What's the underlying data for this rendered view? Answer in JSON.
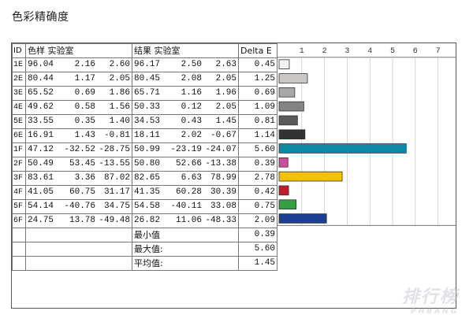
{
  "title": "色彩精确度",
  "headers": {
    "id": "ID",
    "sample": "色样 实验室",
    "result": "结果 实验室",
    "delta": "Delta E"
  },
  "rows": [
    {
      "id": "1E",
      "s": [
        "96.04",
        "2.16",
        "2.60"
      ],
      "r": [
        "96.17",
        "2.50",
        "2.63"
      ],
      "de": "0.45"
    },
    {
      "id": "2E",
      "s": [
        "80.44",
        "1.17",
        "2.05"
      ],
      "r": [
        "80.45",
        "2.08",
        "2.05"
      ],
      "de": "1.25"
    },
    {
      "id": "3E",
      "s": [
        "65.52",
        "0.69",
        "1.86"
      ],
      "r": [
        "65.71",
        "1.16",
        "1.96"
      ],
      "de": "0.69"
    },
    {
      "id": "4E",
      "s": [
        "49.62",
        "0.58",
        "1.56"
      ],
      "r": [
        "50.33",
        "0.12",
        "2.05"
      ],
      "de": "1.09"
    },
    {
      "id": "5E",
      "s": [
        "33.55",
        "0.35",
        "1.40"
      ],
      "r": [
        "34.53",
        "0.43",
        "1.45"
      ],
      "de": "0.81"
    },
    {
      "id": "6E",
      "s": [
        "16.91",
        "1.43",
        "-0.81"
      ],
      "r": [
        "18.11",
        "2.02",
        "-0.67"
      ],
      "de": "1.14"
    },
    {
      "id": "1F",
      "s": [
        "47.12",
        "-32.52",
        "-28.75"
      ],
      "r": [
        "50.99",
        "-23.19",
        "-24.07"
      ],
      "de": "5.60"
    },
    {
      "id": "2F",
      "s": [
        "50.49",
        "53.45",
        "-13.55"
      ],
      "r": [
        "50.80",
        "52.66",
        "-13.38"
      ],
      "de": "0.39"
    },
    {
      "id": "3F",
      "s": [
        "83.61",
        "3.36",
        "87.02"
      ],
      "r": [
        "82.65",
        "6.63",
        "78.99"
      ],
      "de": "2.78"
    },
    {
      "id": "4F",
      "s": [
        "41.05",
        "60.75",
        "31.17"
      ],
      "r": [
        "41.35",
        "60.28",
        "30.39"
      ],
      "de": "0.42"
    },
    {
      "id": "5F",
      "s": [
        "54.14",
        "-40.76",
        "34.75"
      ],
      "r": [
        "54.58",
        "-40.11",
        "33.08"
      ],
      "de": "0.75"
    },
    {
      "id": "6F",
      "s": [
        "24.75",
        "13.78",
        "-49.48"
      ],
      "r": [
        "26.82",
        "11.06",
        "-48.33"
      ],
      "de": "2.09"
    }
  ],
  "summary": [
    {
      "label": "最小值",
      "value": "0.39"
    },
    {
      "label": "最大值:",
      "value": "5.60"
    },
    {
      "label": "平均值:",
      "value": "1.45"
    }
  ],
  "watermark": {
    "text": "排行榜",
    "sub": "PHBANG"
  },
  "chart_data": {
    "type": "bar",
    "orientation": "horizontal",
    "categories": [
      "1E",
      "2E",
      "3E",
      "4E",
      "5E",
      "6E",
      "1F",
      "2F",
      "3F",
      "4F",
      "5F",
      "6F"
    ],
    "values": [
      0.45,
      1.25,
      0.69,
      1.09,
      0.81,
      1.14,
      5.6,
      0.39,
      2.78,
      0.42,
      0.75,
      2.09
    ],
    "colors": [
      "#f2f2f2",
      "#cbc7c5",
      "#a9a8a6",
      "#858483",
      "#5a5a5a",
      "#333333",
      "#0e8aa5",
      "#cc4d9c",
      "#f2c200",
      "#be1e2d",
      "#34a043",
      "#1d3f8f"
    ],
    "xticks": [
      "1",
      "2",
      "3",
      "4",
      "5",
      "6",
      "7"
    ],
    "xlim": [
      0,
      7.4
    ],
    "grid": true,
    "title": "",
    "xlabel": "",
    "ylabel": ""
  }
}
